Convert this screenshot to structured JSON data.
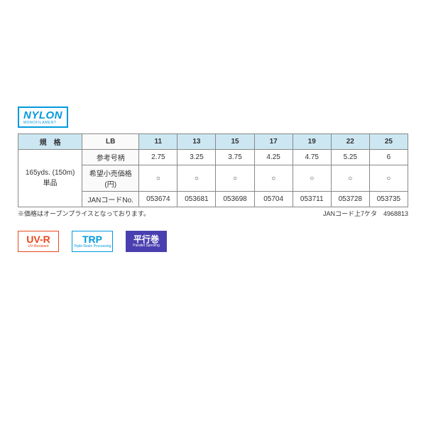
{
  "logo": {
    "main": "NYLON",
    "sub": "MONOFILAMENT"
  },
  "table": {
    "spec_header": "規　格",
    "lb_header": "LB",
    "lb_values": [
      "11",
      "13",
      "15",
      "17",
      "19",
      "22",
      "25"
    ],
    "spec_label_l1": "165yds. (150m)",
    "spec_label_l2": "単品",
    "rows": [
      {
        "label": "参考号柄",
        "vals": [
          "2.75",
          "3.25",
          "3.75",
          "4.25",
          "4.75",
          "5.25",
          "6"
        ]
      },
      {
        "label": "希望小売価格(円)",
        "vals": [
          "○",
          "○",
          "○",
          "○",
          "○",
          "○",
          "○"
        ]
      },
      {
        "label": "JANコードNo.",
        "vals": [
          "053674",
          "053681",
          "053698",
          "05704",
          "053711",
          "053728",
          "053735"
        ]
      }
    ]
  },
  "footer": {
    "left": "※価格はオープンプライスとなっております。",
    "right": "JANコード上7ケタ　4968813"
  },
  "badges": {
    "uvr": {
      "main": "UV-R",
      "sub": "UV-Resistant"
    },
    "trp": {
      "main": "TRP",
      "sub": "Triple Resin Processing"
    },
    "heikou": {
      "main": "平行巻",
      "sub": "Parallel Spooling"
    }
  },
  "colors": {
    "blue": "#0099dd",
    "orange": "#e8471f",
    "purple": "#4a3fb0",
    "header_bg": "#cce7f2",
    "border": "#888"
  }
}
